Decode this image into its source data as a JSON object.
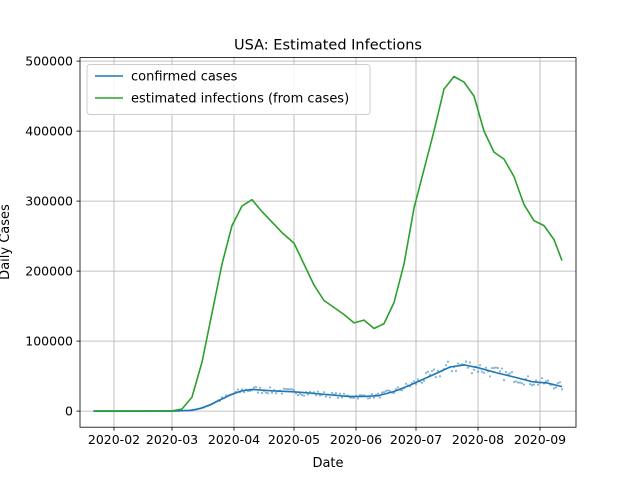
{
  "chart_data": {
    "type": "line",
    "title": "USA: Estimated Infections",
    "xlabel": "Date",
    "ylabel": "Daily Cases",
    "x_range": [
      "2020-01-15",
      "2020-09-19"
    ],
    "y_range": [
      -23000,
      505000
    ],
    "x_ticks": [
      "2020-02",
      "2020-03",
      "2020-04",
      "2020-05",
      "2020-06",
      "2020-07",
      "2020-08",
      "2020-09"
    ],
    "x_tick_dates": [
      "2020-02-01",
      "2020-03-01",
      "2020-04-01",
      "2020-05-01",
      "2020-06-01",
      "2020-07-01",
      "2020-08-01",
      "2020-09-01"
    ],
    "y_ticks": [
      0,
      100000,
      200000,
      300000,
      400000,
      500000
    ],
    "grid": true,
    "legend_position": "top-left",
    "colors": {
      "confirmed": "#1f77b4",
      "estimated": "#2ca02c"
    },
    "series": [
      {
        "name": "confirmed cases",
        "color": "#1f77b4",
        "points": [
          [
            "2020-01-22",
            0
          ],
          [
            "2020-02-15",
            0
          ],
          [
            "2020-03-01",
            100
          ],
          [
            "2020-03-10",
            900
          ],
          [
            "2020-03-15",
            3500
          ],
          [
            "2020-03-20",
            9000
          ],
          [
            "2020-03-25",
            16000
          ],
          [
            "2020-03-31",
            24000
          ],
          [
            "2020-04-05",
            29000
          ],
          [
            "2020-04-10",
            31000
          ],
          [
            "2020-04-20",
            29000
          ],
          [
            "2020-05-01",
            27500
          ],
          [
            "2020-05-10",
            25500
          ],
          [
            "2020-05-20",
            23000
          ],
          [
            "2020-05-28",
            21000
          ],
          [
            "2020-06-05",
            21000
          ],
          [
            "2020-06-12",
            22000
          ],
          [
            "2020-06-20",
            28000
          ],
          [
            "2020-06-28",
            37000
          ],
          [
            "2020-07-05",
            46000
          ],
          [
            "2020-07-12",
            55000
          ],
          [
            "2020-07-18",
            63000
          ],
          [
            "2020-07-25",
            66000
          ],
          [
            "2020-08-01",
            62000
          ],
          [
            "2020-08-10",
            55000
          ],
          [
            "2020-08-20",
            48000
          ],
          [
            "2020-08-28",
            42000
          ],
          [
            "2020-09-05",
            40000
          ],
          [
            "2020-09-12",
            35000
          ]
        ]
      },
      {
        "name": "estimated infections (from cases)",
        "color": "#2ca02c",
        "points": [
          [
            "2020-01-22",
            0
          ],
          [
            "2020-02-20",
            0
          ],
          [
            "2020-03-01",
            200
          ],
          [
            "2020-03-06",
            3000
          ],
          [
            "2020-03-11",
            20000
          ],
          [
            "2020-03-16",
            70000
          ],
          [
            "2020-03-21",
            140000
          ],
          [
            "2020-03-26",
            210000
          ],
          [
            "2020-03-31",
            265000
          ],
          [
            "2020-04-05",
            293000
          ],
          [
            "2020-04-10",
            302000
          ],
          [
            "2020-04-15",
            285000
          ],
          [
            "2020-04-20",
            270000
          ],
          [
            "2020-04-25",
            255000
          ],
          [
            "2020-05-01",
            240000
          ],
          [
            "2020-05-06",
            210000
          ],
          [
            "2020-05-11",
            180000
          ],
          [
            "2020-05-16",
            158000
          ],
          [
            "2020-05-21",
            148000
          ],
          [
            "2020-05-26",
            138000
          ],
          [
            "2020-05-31",
            126000
          ],
          [
            "2020-06-05",
            130000
          ],
          [
            "2020-06-10",
            118000
          ],
          [
            "2020-06-15",
            125000
          ],
          [
            "2020-06-20",
            155000
          ],
          [
            "2020-06-25",
            210000
          ],
          [
            "2020-06-30",
            290000
          ],
          [
            "2020-07-05",
            345000
          ],
          [
            "2020-07-10",
            400000
          ],
          [
            "2020-07-15",
            460000
          ],
          [
            "2020-07-20",
            478000
          ],
          [
            "2020-07-25",
            470000
          ],
          [
            "2020-07-30",
            450000
          ],
          [
            "2020-08-04",
            400000
          ],
          [
            "2020-08-09",
            370000
          ],
          [
            "2020-08-14",
            360000
          ],
          [
            "2020-08-19",
            335000
          ],
          [
            "2020-08-24",
            295000
          ],
          [
            "2020-08-29",
            272000
          ],
          [
            "2020-09-03",
            265000
          ],
          [
            "2020-09-08",
            245000
          ],
          [
            "2020-09-12",
            215000
          ]
        ]
      }
    ]
  }
}
